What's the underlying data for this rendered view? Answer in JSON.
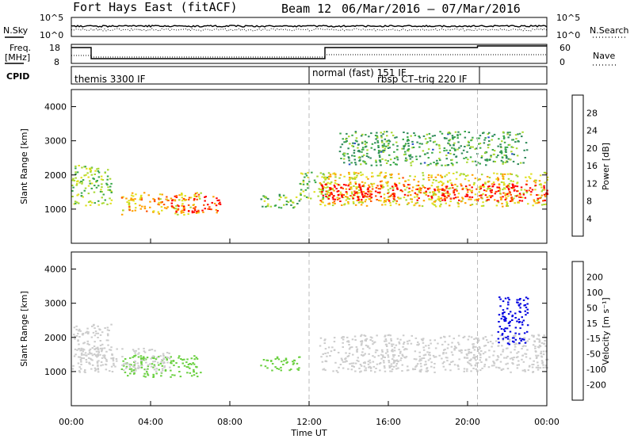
{
  "header": {
    "title": "Fort Hays East (fitACF)",
    "beam": "Beam 12",
    "dates": "06/Mar/2016 – 07/Mar/2016"
  },
  "noise_panel": {
    "left_label": "N.Sky",
    "right_label": "N.Search",
    "ticks_left": [
      "10^5",
      "10^0"
    ],
    "ticks_right": [
      "10^5",
      "10^0"
    ]
  },
  "freq_panel": {
    "left_label": "Freq.",
    "left_unit": "[MHz]",
    "right_label": "Nave",
    "ticks_left": [
      "18",
      "8"
    ],
    "ticks_right": [
      "60",
      "0"
    ]
  },
  "cpid": {
    "label": "CPID",
    "modes": [
      "themis 3300 IF",
      "normal (fast) 151 IF",
      "rbsp CT–trig 220 IF"
    ]
  },
  "power_panel": {
    "ylabel": "Slant Range [km]",
    "colorbar_label": "Power [dB]",
    "colorbar_ticks": [
      "28",
      "24",
      "20",
      "16",
      "12",
      "8",
      "4"
    ],
    "colors": [
      "#0000ff",
      "#2750c8",
      "#2f8a5a",
      "#3aa84a",
      "#a8d830",
      "#e0e020",
      "#ffa000",
      "#ff5000",
      "#ff0000"
    ]
  },
  "velocity_panel": {
    "ylabel": "Slant Range [km]",
    "colorbar_label": "Velocity [m s⁻¹]",
    "colorbar_ticks": [
      "200",
      "100",
      "50",
      "15",
      "-15",
      "-50",
      "-100",
      "-200"
    ],
    "colors": [
      "#0000e0",
      "#1a5ac0",
      "#2e8a4a",
      "#6ad040",
      "#cccccc",
      "#ffd000",
      "#ff9000",
      "#ff5000",
      "#ff0000"
    ]
  },
  "x_axis": {
    "label": "Time UT",
    "ticks": [
      "00:00",
      "04:00",
      "08:00",
      "12:00",
      "16:00",
      "20:00",
      "00:00"
    ]
  },
  "chart_data": {
    "type": "heatmap",
    "title": "Fort Hays East (fitACF)",
    "xlabel": "Time UT",
    "ylabel": "Slant Range [km]",
    "x_range_hours": [
      0,
      24
    ],
    "y_range_km": [
      0,
      4500
    ],
    "y_ticks": [
      1000,
      2000,
      3000,
      4000
    ],
    "mode_change_lines_hours": [
      12,
      20.5
    ],
    "power_echo_regions": [
      {
        "t0": 0.0,
        "t1": 2.0,
        "r0": 1100,
        "r1": 2300,
        "level": 14
      },
      {
        "t0": 2.5,
        "t1": 6.5,
        "r0": 850,
        "r1": 1500,
        "level": 20
      },
      {
        "t0": 5.0,
        "t1": 7.5,
        "r0": 900,
        "r1": 1400,
        "level": 26
      },
      {
        "t0": 9.5,
        "t1": 11.5,
        "r0": 1050,
        "r1": 1450,
        "level": 12
      },
      {
        "t0": 11.5,
        "t1": 13.0,
        "r0": 1300,
        "r1": 2100,
        "level": 14
      },
      {
        "t0": 12.5,
        "t1": 24.0,
        "r0": 1100,
        "r1": 2100,
        "level": 18
      },
      {
        "t0": 12.5,
        "t1": 24.0,
        "r0": 1250,
        "r1": 1750,
        "level": 28
      },
      {
        "t0": 13.5,
        "t1": 23.0,
        "r0": 2300,
        "r1": 3300,
        "level": 10
      }
    ],
    "velocity_echo_regions": [
      {
        "t0": 0.0,
        "t1": 2.0,
        "r0": 1400,
        "r1": 2400,
        "level": 0
      },
      {
        "t0": 2.5,
        "t1": 6.5,
        "r0": 850,
        "r1": 1500,
        "level": 30
      },
      {
        "t0": 0.0,
        "t1": 5.0,
        "r0": 1000,
        "r1": 1700,
        "level": 0
      },
      {
        "t0": 9.5,
        "t1": 11.5,
        "r0": 1050,
        "r1": 1450,
        "level": 20
      },
      {
        "t0": 12.5,
        "t1": 24.0,
        "r0": 1000,
        "r1": 2100,
        "level": 0
      },
      {
        "t0": 21.5,
        "t1": 23.0,
        "r0": 1800,
        "r1": 3200,
        "level": 200
      }
    ]
  }
}
